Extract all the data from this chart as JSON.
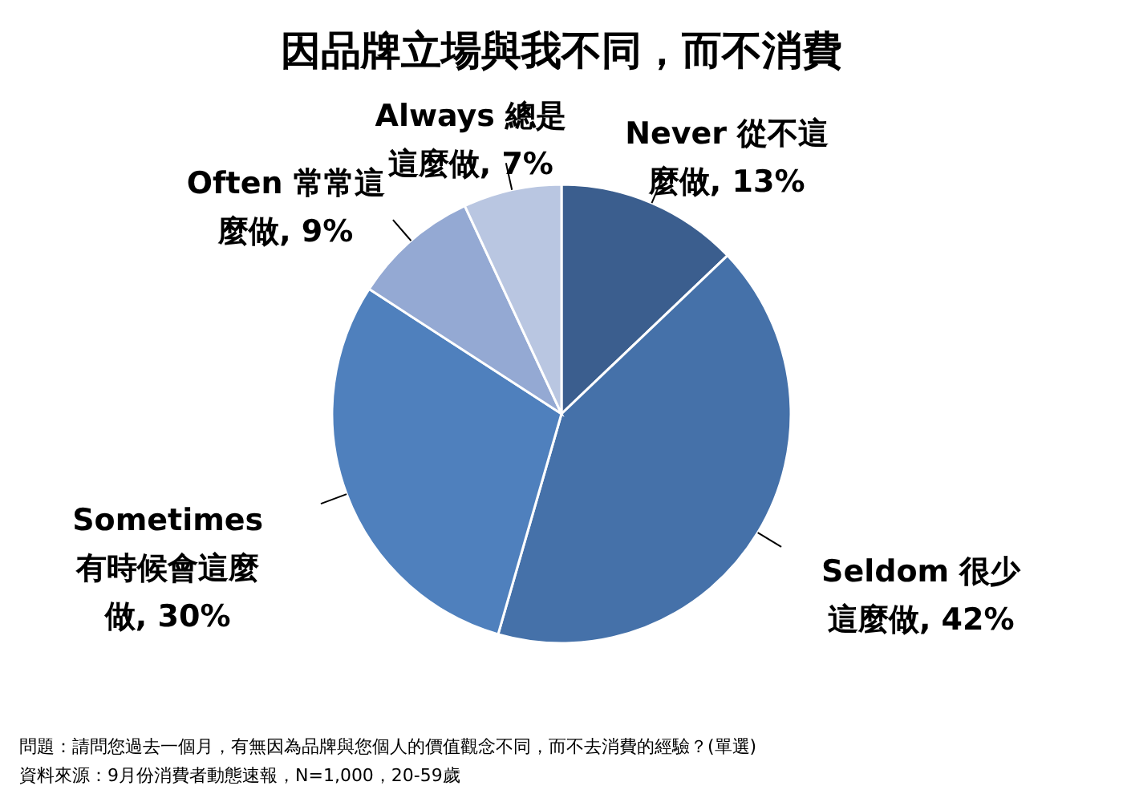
{
  "chart_data": {
    "type": "pie",
    "title": "因品牌立場與我不同，而不消費",
    "categories": [
      "Never 從不這麼做",
      "Seldom 很少這麼做",
      "Sometimes 有時候會這麼做",
      "Often 常常這麼做",
      "Always 總是這麼做"
    ],
    "values": [
      13,
      42,
      30,
      9,
      7
    ],
    "colors": [
      "#3b5e8e",
      "#4571a9",
      "#4f80bd",
      "#94a9d3",
      "#b9c6e1"
    ],
    "value_labels": [
      "13%",
      "42%",
      "30%",
      "9%",
      "7%"
    ],
    "annotations": [
      "問題：請問您過去一個月，有無因為品牌與您個人的價值觀念不同，而不去消費的經驗？(單選)",
      "資料來源：9月份消費者動態速報，N=1,000，20-59歲"
    ]
  }
}
